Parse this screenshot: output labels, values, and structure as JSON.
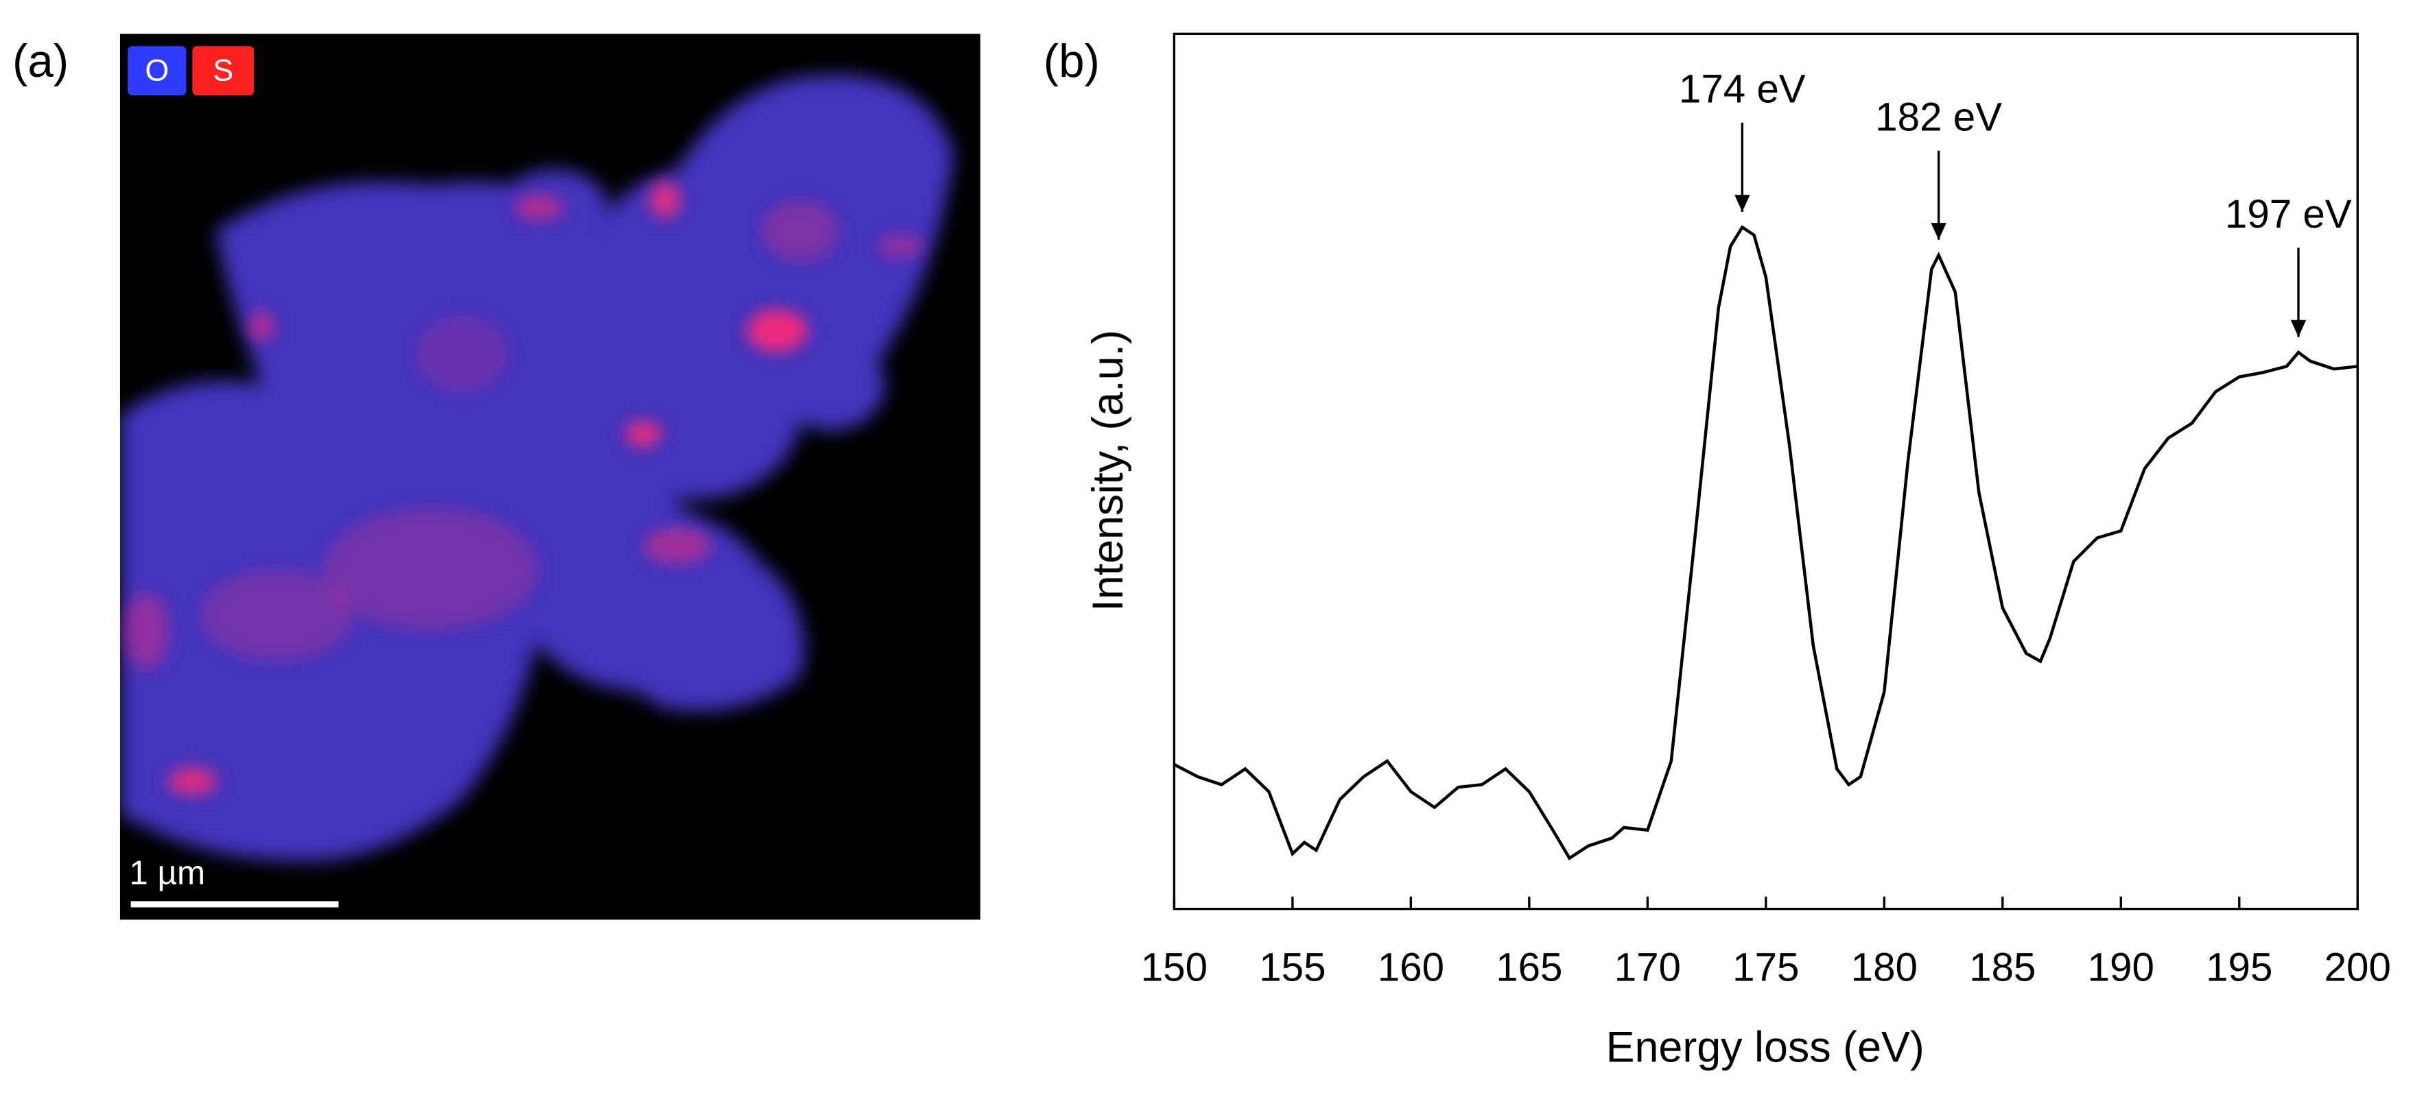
{
  "panel_a": {
    "label": "(a)",
    "legend": [
      {
        "text": "O",
        "color": "#2f3cff"
      },
      {
        "text": "S",
        "color": "#ff2020"
      }
    ],
    "scale_bar": "1 µm"
  },
  "chart_data": {
    "type": "line",
    "label": "(b)",
    "xlabel": "Energy loss (eV)",
    "ylabel": "Intensity, (a.u.)",
    "x": [
      150,
      151,
      152,
      153,
      154,
      155,
      155.5,
      156,
      157,
      158,
      159,
      160,
      161,
      162,
      163,
      164,
      165,
      166,
      166.7,
      167.5,
      168.5,
      169,
      170,
      171,
      172,
      173,
      173.5,
      174,
      174.5,
      175,
      176,
      177,
      178,
      178.5,
      179,
      180,
      181,
      182,
      182.3,
      183,
      184,
      185,
      186,
      186.6,
      187,
      188,
      189,
      190,
      191,
      192,
      193,
      194,
      195,
      196,
      197,
      197.5,
      198,
      199,
      200
    ],
    "series": [
      {
        "color": "#000000",
        "values": [
          16.5,
          15.1,
          14.2,
          16.0,
          13.4,
          6.3,
          7.6,
          6.7,
          12.5,
          15.1,
          16.9,
          13.4,
          11.6,
          13.9,
          14.2,
          16.0,
          13.4,
          9.0,
          5.8,
          7.2,
          8.1,
          9.3,
          9.0,
          16.9,
          42.4,
          68.7,
          75.7,
          77.9,
          77.0,
          72.2,
          52.9,
          30.1,
          16.0,
          14.2,
          15.1,
          24.8,
          51.1,
          73.1,
          74.7,
          70.5,
          47.6,
          34.4,
          29.2,
          28.3,
          30.9,
          39.7,
          42.4,
          43.2,
          50.3,
          53.8,
          55.5,
          59.1,
          60.8,
          61.3,
          62.0,
          63.6,
          62.6,
          61.7,
          62.0
        ]
      }
    ],
    "xlim": [
      150,
      200
    ],
    "ylim": [
      0,
      100
    ],
    "xticks": [
      150,
      155,
      160,
      165,
      170,
      175,
      180,
      185,
      190,
      195,
      200
    ],
    "annotations": [
      {
        "text": "174 eV",
        "x": 174
      },
      {
        "text": "182 eV",
        "x": 182.3
      },
      {
        "text": "197 eV",
        "x": 197.5
      }
    ]
  }
}
